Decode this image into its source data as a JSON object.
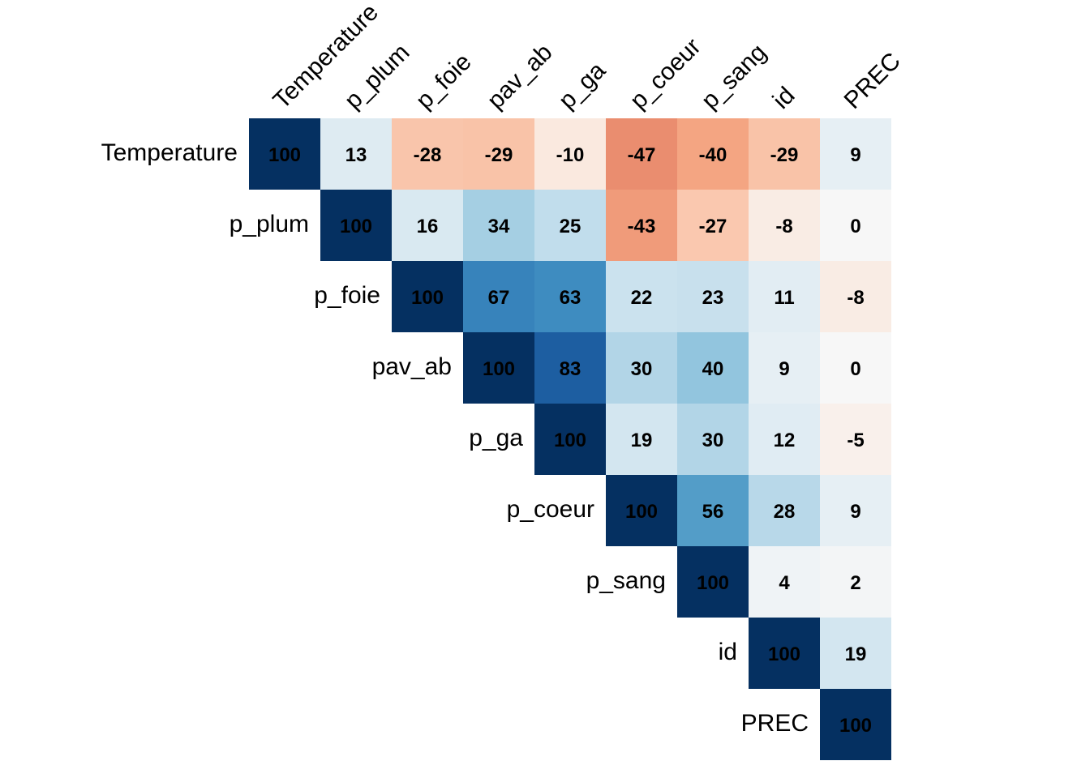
{
  "chart_data": {
    "type": "heatmap",
    "variables": [
      "Temperature",
      "p_plum",
      "p_foie",
      "pav_ab",
      "p_ga",
      "p_coeur",
      "p_sang",
      "id",
      "PREC"
    ],
    "values": [
      [
        100,
        13,
        -28,
        -29,
        -10,
        -47,
        -40,
        -29,
        9
      ],
      [
        null,
        100,
        16,
        34,
        25,
        -43,
        -27,
        -8,
        0
      ],
      [
        null,
        null,
        100,
        67,
        63,
        22,
        23,
        11,
        -8
      ],
      [
        null,
        null,
        null,
        100,
        83,
        30,
        40,
        9,
        0
      ],
      [
        null,
        null,
        null,
        null,
        100,
        19,
        30,
        12,
        -5
      ],
      [
        null,
        null,
        null,
        null,
        null,
        100,
        56,
        28,
        9
      ],
      [
        null,
        null,
        null,
        null,
        null,
        null,
        100,
        4,
        2
      ],
      [
        null,
        null,
        null,
        null,
        null,
        null,
        null,
        100,
        19
      ],
      [
        null,
        null,
        null,
        null,
        null,
        null,
        null,
        null,
        100
      ]
    ],
    "value_range": [
      -100,
      100
    ],
    "layout": "upper-triangle",
    "color_scale": {
      "negative": "#67001f",
      "mid": "#f7f7f7",
      "positive": "#053061",
      "name": "RdBu"
    },
    "title": "",
    "xlabel": "",
    "ylabel": "",
    "legend": "none"
  }
}
